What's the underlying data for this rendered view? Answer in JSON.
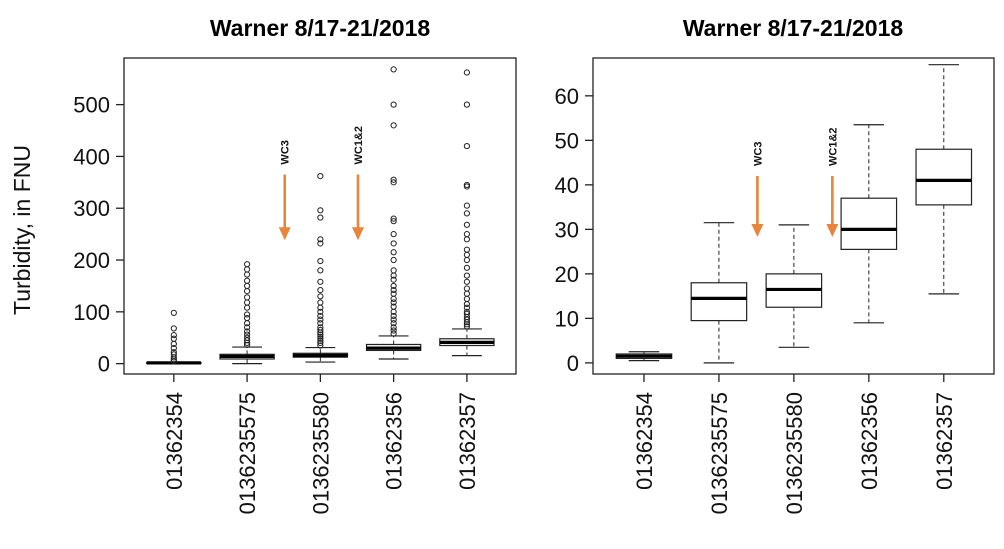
{
  "chart_data": [
    {
      "type": "box",
      "title": "Warner 8/17-21/2018",
      "ylabel": "Turbidity, in FNU",
      "xlabel": "",
      "ylim": [
        -20,
        590
      ],
      "yticks": [
        0,
        100,
        200,
        300,
        400,
        500
      ],
      "grid": false,
      "categories": [
        "01362354",
        "0136235575",
        "0136235580",
        "01362356",
        "01362357"
      ],
      "boxes": [
        {
          "low": 0,
          "q1": 1,
          "median": 1.5,
          "q3": 2,
          "high": 3,
          "outliers": [
            5,
            8,
            12,
            18,
            22,
            30,
            38,
            48,
            55,
            68,
            98
          ]
        },
        {
          "low": 0,
          "q1": 9,
          "median": 14,
          "q3": 18,
          "high": 32,
          "outliers": [
            36,
            40,
            45,
            50,
            56,
            62,
            70,
            78,
            88,
            95,
            108,
            118,
            128,
            140,
            150,
            160,
            172,
            182,
            192
          ]
        },
        {
          "low": 3,
          "q1": 12.5,
          "median": 16,
          "q3": 20,
          "high": 31,
          "outliers": [
            35,
            40,
            44,
            48,
            52,
            56,
            60,
            65,
            70,
            78,
            85,
            92,
            100,
            108,
            118,
            130,
            142,
            158,
            180,
            198,
            232,
            240,
            282,
            296,
            362
          ]
        },
        {
          "low": 9,
          "q1": 25.5,
          "median": 30,
          "q3": 37,
          "high": 53.5,
          "outliers": [
            58,
            64,
            70,
            78,
            85,
            92,
            100,
            110,
            118,
            125,
            135,
            142,
            150,
            162,
            170,
            180,
            200,
            215,
            232,
            250,
            275,
            280,
            350,
            355,
            460,
            500,
            568
          ]
        },
        {
          "low": 15.5,
          "q1": 35,
          "median": 41,
          "q3": 48,
          "high": 67,
          "outliers": [
            72,
            76,
            80,
            85,
            90,
            96,
            100,
            108,
            115,
            125,
            135,
            145,
            158,
            170,
            185,
            200,
            210,
            220,
            240,
            250,
            268,
            290,
            305,
            342,
            345,
            420,
            500,
            562
          ]
        }
      ],
      "annotations": [
        {
          "text": "WC3",
          "x_between": [
            2,
            3
          ],
          "arrow_from": 365,
          "arrow_to": 240
        },
        {
          "text": "WC1&2",
          "x_between": [
            3,
            4
          ],
          "arrow_from": 365,
          "arrow_to": 240
        }
      ],
      "arrow_color": "#e9843d"
    },
    {
      "type": "box",
      "title": "Warner 8/17-21/2018",
      "ylabel": "",
      "xlabel": "",
      "ylim": [
        -2.5,
        68.5
      ],
      "yticks": [
        0,
        10,
        20,
        30,
        40,
        50,
        60
      ],
      "grid": false,
      "categories": [
        "01362354",
        "0136235575",
        "0136235580",
        "01362356",
        "01362357"
      ],
      "boxes": [
        {
          "low": 0.5,
          "q1": 1,
          "median": 1.5,
          "q3": 2,
          "high": 2.5,
          "outliers": []
        },
        {
          "low": 0,
          "q1": 9.5,
          "median": 14.5,
          "q3": 18,
          "high": 31.5,
          "outliers": []
        },
        {
          "low": 3.5,
          "q1": 12.5,
          "median": 16.5,
          "q3": 20,
          "high": 31,
          "outliers": []
        },
        {
          "low": 9,
          "q1": 25.5,
          "median": 30,
          "q3": 37,
          "high": 53.5,
          "outliers": []
        },
        {
          "low": 15.5,
          "q1": 35.5,
          "median": 41,
          "q3": 48,
          "high": 67,
          "outliers": []
        }
      ],
      "annotations": [
        {
          "text": "WC3",
          "x_between": [
            2,
            3
          ],
          "arrow_from": 42,
          "arrow_to": 28.5
        },
        {
          "text": "WC1&2",
          "x_between": [
            3,
            4
          ],
          "arrow_from": 42,
          "arrow_to": 28.5
        }
      ],
      "arrow_color": "#e9843d"
    }
  ]
}
